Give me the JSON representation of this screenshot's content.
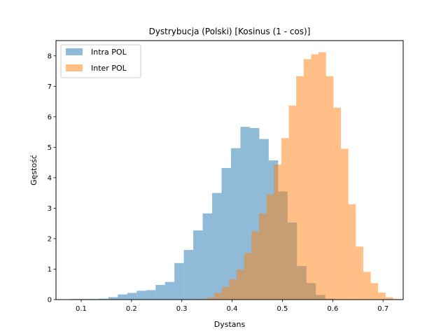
{
  "chart_data": {
    "type": "histogram",
    "title": "Dystrybucja (Polski) [Kosinus (1 - cos)]",
    "xlabel": "Dystans",
    "ylabel": "Gęstość",
    "xlim": [
      0.05,
      0.74
    ],
    "ylim": [
      0,
      8.5
    ],
    "xticks": [
      0.1,
      0.2,
      0.3,
      0.4,
      0.5,
      0.6,
      0.7
    ],
    "yticks": [
      0,
      1,
      2,
      3,
      4,
      5,
      6,
      7,
      8
    ],
    "grid": false,
    "legend": "top-left",
    "series": [
      {
        "name": "Intra POL",
        "color": "#1f77b4",
        "alpha": 0.5,
        "bin_width": 0.01874,
        "bin_starts": [
          0.0792,
          0.0979,
          0.1167,
          0.1354,
          0.1542,
          0.1729,
          0.1916,
          0.2104,
          0.2291,
          0.2479,
          0.2666,
          0.2853,
          0.3041,
          0.3228,
          0.3416,
          0.3603,
          0.379,
          0.3978,
          0.4165,
          0.4353,
          0.454,
          0.4727,
          0.4915,
          0.5102,
          0.529,
          0.5477,
          0.5664,
          0.5852
        ],
        "values": [
          0.02,
          0.02,
          0.02,
          0.03,
          0.08,
          0.17,
          0.22,
          0.29,
          0.31,
          0.48,
          0.58,
          1.2,
          1.63,
          2.27,
          2.83,
          3.5,
          4.32,
          4.97,
          5.67,
          5.63,
          5.27,
          4.57,
          3.55,
          2.53,
          1.1,
          0.54,
          0.15,
          0.03
        ]
      },
      {
        "name": "Inter POL",
        "color": "#ff7f0e",
        "alpha": 0.5,
        "bin_width": 0.0148,
        "bin_starts": [
          0.3202,
          0.335,
          0.3498,
          0.3646,
          0.3794,
          0.3942,
          0.409,
          0.4238,
          0.4386,
          0.4534,
          0.4682,
          0.483,
          0.4978,
          0.5126,
          0.5274,
          0.5422,
          0.557,
          0.5718,
          0.5866,
          0.6014,
          0.6162,
          0.631,
          0.6458,
          0.6606,
          0.6754,
          0.6902,
          0.705,
          0.7198
        ],
        "values": [
          0.02,
          0.02,
          0.07,
          0.22,
          0.42,
          0.67,
          0.98,
          1.53,
          2.24,
          2.82,
          3.45,
          4.43,
          5.3,
          6.37,
          7.33,
          7.89,
          8.05,
          8.12,
          7.33,
          6.3,
          4.95,
          3.13,
          1.74,
          0.91,
          0.54,
          0.23,
          0.08,
          0.02
        ]
      }
    ]
  }
}
